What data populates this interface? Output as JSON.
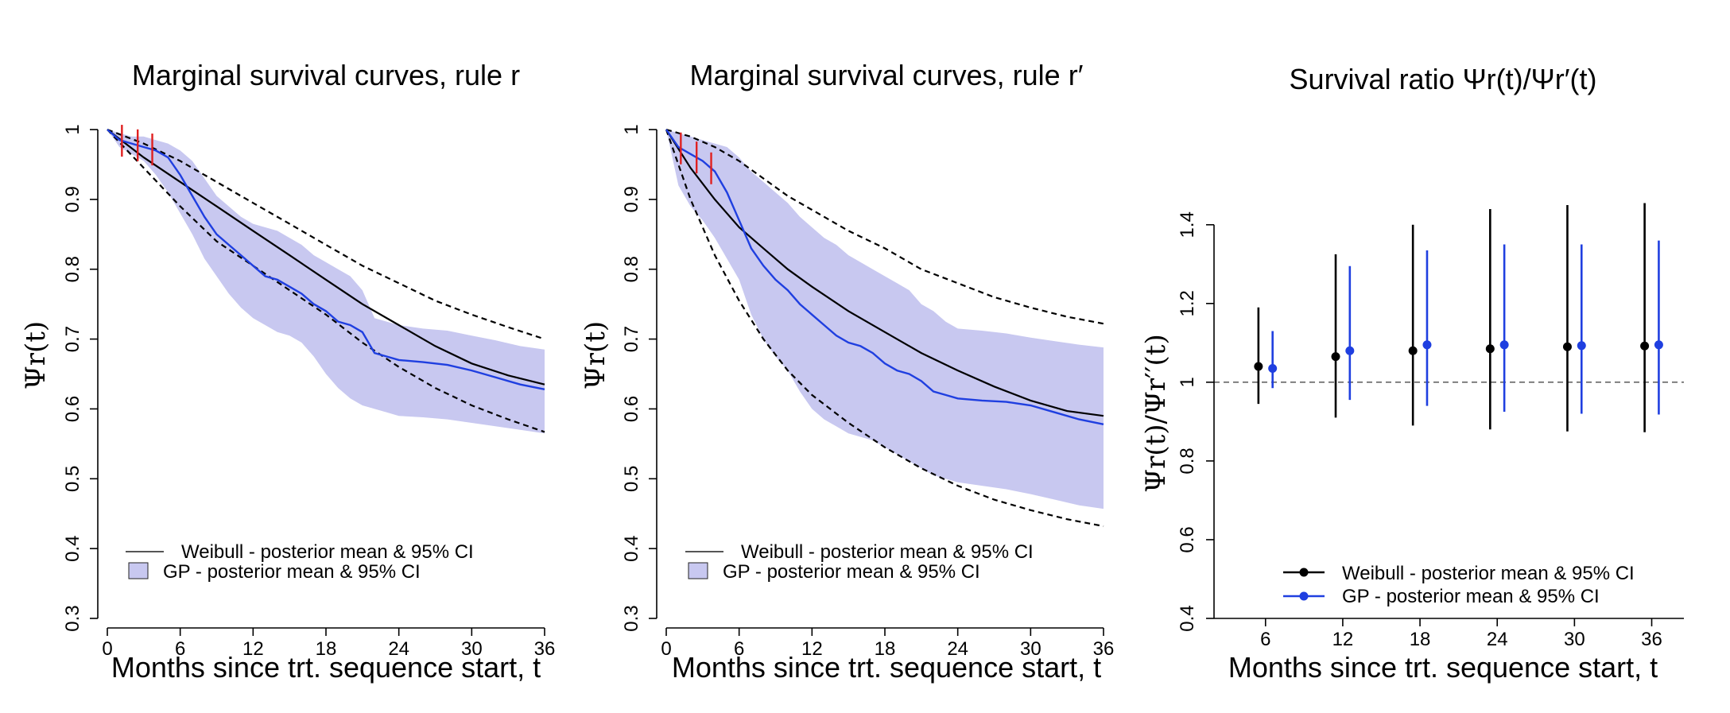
{
  "chart_data": [
    {
      "type": "line",
      "title": "Marginal survival curves, rule r",
      "xlabel": "Months since trt. sequence start, t",
      "ylabel": "Ψr(t)",
      "xlim": [
        0,
        36
      ],
      "ylim": [
        0.3,
        1
      ],
      "x_ticks": [
        "0",
        "6",
        "12",
        "18",
        "24",
        "30",
        "36"
      ],
      "y_ticks": [
        "0.3",
        "0.4",
        "0.5",
        "0.6",
        "0.7",
        "0.8",
        "0.9",
        "1"
      ],
      "legend": [
        "Weibull - posterior mean & 95% CI",
        "GP - posterior mean & 95% CI"
      ],
      "legend_position": "bottom-left",
      "censor_marks": [
        1.2,
        2.5,
        3.7
      ],
      "series": [
        {
          "name": "Weibull - posterior mean & 95% CI",
          "color": "#000000",
          "x": [
            0,
            3,
            6,
            9,
            12,
            15,
            18,
            21,
            24,
            27,
            30,
            33,
            36
          ],
          "mean": [
            1,
            0.96,
            0.925,
            0.89,
            0.855,
            0.82,
            0.785,
            0.75,
            0.72,
            0.69,
            0.665,
            0.648,
            0.635
          ],
          "lower": [
            1,
            0.945,
            0.89,
            0.84,
            0.805,
            0.77,
            0.735,
            0.695,
            0.66,
            0.63,
            0.605,
            0.585,
            0.567
          ],
          "upper": [
            1,
            0.98,
            0.955,
            0.925,
            0.895,
            0.865,
            0.835,
            0.805,
            0.78,
            0.755,
            0.735,
            0.717,
            0.7
          ]
        },
        {
          "name": "GP - posterior mean & 95% CI",
          "color": "#1f3fe0",
          "band_color": "#c8c8f0",
          "x": [
            0,
            1,
            2,
            3,
            4,
            5,
            6,
            7,
            8,
            9,
            10,
            11,
            12,
            13,
            14,
            15,
            16,
            17,
            18,
            19,
            20,
            21,
            22,
            23,
            24,
            26,
            28,
            30,
            32,
            34,
            36
          ],
          "mean": [
            1,
            0.985,
            0.98,
            0.975,
            0.97,
            0.96,
            0.935,
            0.905,
            0.875,
            0.85,
            0.835,
            0.82,
            0.805,
            0.79,
            0.785,
            0.775,
            0.765,
            0.75,
            0.74,
            0.725,
            0.72,
            0.71,
            0.68,
            0.675,
            0.67,
            0.667,
            0.663,
            0.655,
            0.645,
            0.635,
            0.628
          ],
          "lower": [
            1,
            0.975,
            0.965,
            0.955,
            0.935,
            0.91,
            0.88,
            0.85,
            0.815,
            0.79,
            0.765,
            0.745,
            0.73,
            0.72,
            0.71,
            0.705,
            0.695,
            0.675,
            0.65,
            0.63,
            0.615,
            0.605,
            0.6,
            0.595,
            0.59,
            0.588,
            0.585,
            0.58,
            0.575,
            0.57,
            0.565
          ],
          "upper": [
            1,
            0.995,
            0.99,
            0.99,
            0.985,
            0.98,
            0.97,
            0.955,
            0.93,
            0.905,
            0.89,
            0.875,
            0.865,
            0.86,
            0.855,
            0.845,
            0.835,
            0.82,
            0.81,
            0.8,
            0.79,
            0.77,
            0.73,
            0.725,
            0.72,
            0.715,
            0.712,
            0.705,
            0.698,
            0.69,
            0.685
          ]
        }
      ]
    },
    {
      "type": "line",
      "title": "Marginal survival curves, rule r′",
      "xlabel": "Months since trt. sequence start, t",
      "ylabel": "Ψr(t)",
      "xlim": [
        0,
        36
      ],
      "ylim": [
        0.3,
        1
      ],
      "x_ticks": [
        "0",
        "6",
        "12",
        "18",
        "24",
        "30",
        "36"
      ],
      "y_ticks": [
        "0.3",
        "0.4",
        "0.5",
        "0.6",
        "0.7",
        "0.8",
        "0.9",
        "1"
      ],
      "legend": [
        "Weibull - posterior mean & 95% CI",
        "GP - posterior mean & 95% CI"
      ],
      "legend_position": "bottom-left",
      "censor_marks": [
        1.2,
        2.5,
        3.7
      ],
      "series": [
        {
          "name": "Weibull - posterior mean & 95% CI",
          "color": "#000000",
          "x": [
            0,
            2,
            4,
            6,
            8,
            10,
            12,
            15,
            18,
            21,
            24,
            27,
            30,
            33,
            36
          ],
          "mean": [
            1,
            0.945,
            0.9,
            0.86,
            0.83,
            0.8,
            0.775,
            0.74,
            0.71,
            0.68,
            0.655,
            0.632,
            0.612,
            0.597,
            0.59
          ],
          "lower": [
            1,
            0.9,
            0.82,
            0.755,
            0.7,
            0.655,
            0.62,
            0.58,
            0.545,
            0.515,
            0.49,
            0.47,
            0.455,
            0.442,
            0.432
          ],
          "upper": [
            1,
            0.99,
            0.975,
            0.955,
            0.93,
            0.905,
            0.885,
            0.855,
            0.83,
            0.8,
            0.78,
            0.76,
            0.745,
            0.732,
            0.722
          ]
        },
        {
          "name": "GP - posterior mean & 95% CI",
          "color": "#1f3fe0",
          "band_color": "#c8c8f0",
          "x": [
            0,
            1,
            2,
            3,
            4,
            5,
            6,
            7,
            8,
            9,
            10,
            11,
            12,
            13,
            14,
            15,
            16,
            17,
            18,
            19,
            20,
            21,
            22,
            23,
            24,
            26,
            28,
            30,
            32,
            34,
            36
          ],
          "mean": [
            1,
            0.975,
            0.965,
            0.955,
            0.94,
            0.91,
            0.87,
            0.83,
            0.805,
            0.785,
            0.77,
            0.75,
            0.735,
            0.72,
            0.705,
            0.695,
            0.69,
            0.68,
            0.665,
            0.655,
            0.65,
            0.64,
            0.625,
            0.62,
            0.615,
            0.612,
            0.61,
            0.605,
            0.595,
            0.585,
            0.578
          ],
          "lower": [
            1,
            0.92,
            0.89,
            0.87,
            0.845,
            0.815,
            0.785,
            0.735,
            0.7,
            0.675,
            0.655,
            0.625,
            0.6,
            0.585,
            0.575,
            0.565,
            0.56,
            0.555,
            0.545,
            0.535,
            0.525,
            0.515,
            0.505,
            0.5,
            0.495,
            0.49,
            0.485,
            0.478,
            0.47,
            0.462,
            0.457
          ],
          "upper": [
            1,
            0.995,
            0.99,
            0.985,
            0.98,
            0.975,
            0.96,
            0.94,
            0.925,
            0.91,
            0.895,
            0.875,
            0.86,
            0.845,
            0.835,
            0.82,
            0.81,
            0.8,
            0.79,
            0.78,
            0.77,
            0.75,
            0.74,
            0.725,
            0.715,
            0.712,
            0.708,
            0.702,
            0.697,
            0.692,
            0.688
          ]
        }
      ]
    },
    {
      "type": "scatter",
      "title": "Survival ratio Ψr(t)/Ψr′(t)",
      "xlabel": "Months since trt. sequence start, t",
      "ylabel": "Ψr(t)/Ψr′′(t)",
      "xlim": [
        2,
        38.5
      ],
      "ylim": [
        0.4,
        1.45
      ],
      "x_ticks": [
        "6",
        "12",
        "18",
        "24",
        "30",
        "36"
      ],
      "y_ticks": [
        "0.4",
        "0.6",
        "0.8",
        "1",
        "1.2",
        "1.4"
      ],
      "reference_line": 1,
      "legend": [
        "Weibull - posterior mean & 95% CI",
        "GP - posterior mean & 95% CI"
      ],
      "legend_position": "bottom-right",
      "categories": [
        6,
        12,
        18,
        24,
        30,
        36
      ],
      "series": [
        {
          "name": "Weibull - posterior mean & 95% CI",
          "color": "#000000",
          "mean": [
            1.04,
            1.065,
            1.08,
            1.085,
            1.09,
            1.092
          ],
          "lower": [
            0.945,
            0.91,
            0.89,
            0.88,
            0.875,
            0.873
          ],
          "upper": [
            1.19,
            1.325,
            1.4,
            1.44,
            1.45,
            1.455
          ]
        },
        {
          "name": "GP - posterior mean & 95% CI",
          "color": "#1f3fe0",
          "mean": [
            1.035,
            1.08,
            1.095,
            1.095,
            1.093,
            1.095
          ],
          "lower": [
            0.985,
            0.955,
            0.94,
            0.925,
            0.92,
            0.918
          ],
          "upper": [
            1.13,
            1.295,
            1.335,
            1.35,
            1.35,
            1.36
          ]
        }
      ]
    }
  ]
}
